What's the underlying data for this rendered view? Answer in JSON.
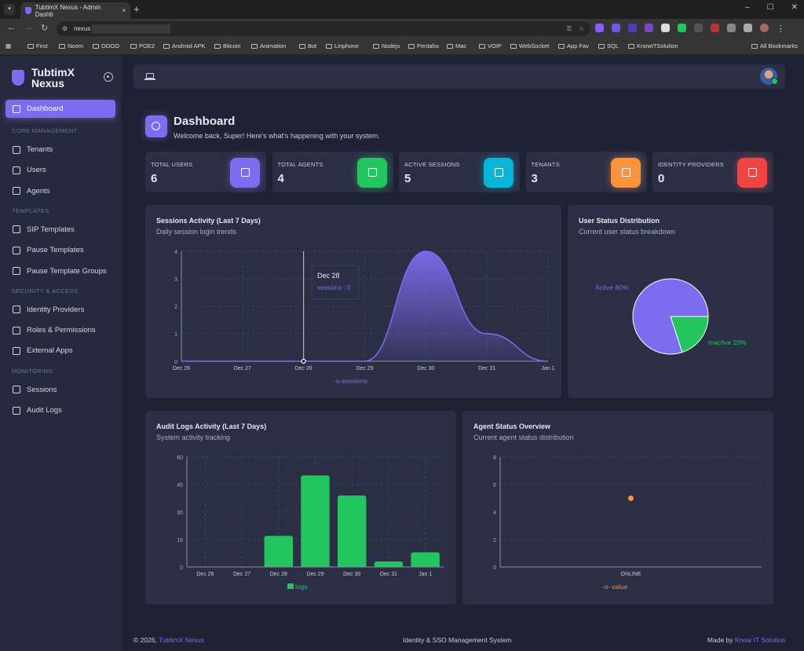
{
  "browser": {
    "tab_title": "TubtimX Nexus - Admin Dashb",
    "url": "nexus",
    "new_tab": "+",
    "close": "×",
    "bookmarks": [
      "First",
      "Noom",
      "ODOO",
      "POE2",
      "Android APK",
      "Bitcoin",
      "Animation",
      "Bot",
      "Linphone",
      "Nodejs",
      "Pentaho",
      "Mac",
      "VOIP",
      "WebSocket",
      "App Fav",
      "SQL",
      "KnowITSolution"
    ],
    "all_bookmarks": "All Bookmarks"
  },
  "sidebar": {
    "brand": "TubtimX Nexus",
    "dashboard": "Dashboard",
    "sections": [
      {
        "title": "CORE MANAGEMENT",
        "items": [
          "Tenants",
          "Users",
          "Agents"
        ]
      },
      {
        "title": "TEMPLATES",
        "items": [
          "SIP Templates",
          "Pause Templates",
          "Pause Template Groups"
        ]
      },
      {
        "title": "SECURITY & ACCESS",
        "items": [
          "Identity Providers",
          "Roles & Permissions",
          "External Apps"
        ]
      },
      {
        "title": "MONITORING",
        "items": [
          "Sessions",
          "Audit Logs"
        ]
      }
    ]
  },
  "page": {
    "title": "Dashboard",
    "subtitle": "Welcome back, Super! Here's what's happening with your system."
  },
  "stats": [
    {
      "label": "TOTAL USERS",
      "value": "6",
      "color": "#7c6cf0",
      "icon": "users-icon"
    },
    {
      "label": "TOTAL AGENTS",
      "value": "4",
      "color": "#22c55e",
      "icon": "agent-icon"
    },
    {
      "label": "ACTIVE SESSIONS",
      "value": "5",
      "color": "#06b6d4",
      "icon": "monitor-icon"
    },
    {
      "label": "TENANTS",
      "value": "3",
      "color": "#fb923c",
      "icon": "store-icon"
    },
    {
      "label": "IDENTITY PROVIDERS",
      "value": "0",
      "color": "#ef4444",
      "icon": "shield-icon"
    }
  ],
  "chart_data": [
    {
      "type": "area",
      "title": "Sessions Activity (Last 7 Days)",
      "subtitle": "Daily session login trends",
      "categories": [
        "Dec 26",
        "Dec 27",
        "Dec 28",
        "Dec 29",
        "Dec 30",
        "Dec 31",
        "Jan 1"
      ],
      "series": [
        {
          "name": "sessions",
          "values": [
            0,
            0,
            0,
            0,
            4,
            1,
            0
          ]
        }
      ],
      "ylim": [
        0,
        4
      ],
      "yticks": [
        0,
        1,
        2,
        3,
        4
      ],
      "tooltip": {
        "title": "Dec 28",
        "text": "sessions : 0"
      },
      "color": "#7c6cf0",
      "legend": "bottom"
    },
    {
      "type": "pie",
      "title": "User Status Distribution",
      "subtitle": "Current user status breakdown",
      "slices": [
        {
          "label": "Active 80%",
          "name": "Active",
          "value": 80,
          "color": "#7c6cf0"
        },
        {
          "label": "Inactive 20%",
          "name": "Inactive",
          "value": 20,
          "color": "#22c55e"
        }
      ]
    },
    {
      "type": "bar",
      "title": "Audit Logs Activity (Last 7 Days)",
      "subtitle": "System activity tracking",
      "categories": [
        "Dec 26",
        "Dec 27",
        "Dec 28",
        "Dec 29",
        "Dec 30",
        "Dec 31",
        "Jan 1"
      ],
      "series": [
        {
          "name": "logs",
          "values": [
            0,
            0,
            17,
            50,
            39,
            3,
            8
          ]
        }
      ],
      "ylim": [
        0,
        60
      ],
      "yticks": [
        0,
        15,
        30,
        45,
        60
      ],
      "color": "#22c55e",
      "legend": "bottom"
    },
    {
      "type": "scatter",
      "title": "Agent Status Overview",
      "subtitle": "Current agent status distribution",
      "categories": [
        "ONLINE"
      ],
      "series": [
        {
          "name": "value",
          "values": [
            5
          ]
        }
      ],
      "ylim": [
        0,
        8
      ],
      "yticks": [
        0,
        2,
        4,
        6,
        8
      ],
      "color": "#fb923c",
      "legend": "bottom"
    }
  ],
  "footer": {
    "copyright": "© 2026, ",
    "brand": "TubtimX Nexus",
    "center": "Identity & SSO Management System",
    "made_by": "Made by ",
    "company": "Know IT Solution"
  }
}
